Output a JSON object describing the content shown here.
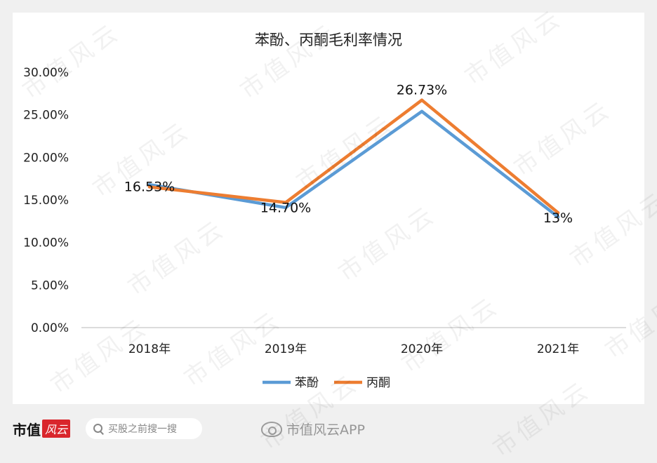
{
  "chart_data": {
    "type": "line",
    "title": "苯酚、丙酮毛利率情况",
    "categories": [
      "2018年",
      "2019年",
      "2020年",
      "2021年"
    ],
    "ylim": [
      0,
      30
    ],
    "y_ticks": [
      "0.00%",
      "5.00%",
      "10.00%",
      "15.00%",
      "20.00%",
      "25.00%",
      "30.00%"
    ],
    "y_tick_values": [
      0,
      5,
      10,
      15,
      20,
      25,
      30
    ],
    "series": [
      {
        "name": "苯酚",
        "values": [
          16.8,
          14.1,
          25.4,
          13.0
        ],
        "color": "#5b9bd5"
      },
      {
        "name": "丙酮",
        "values": [
          16.53,
          14.7,
          26.73,
          13.5
        ],
        "color": "#ed7d31"
      }
    ],
    "data_labels": [
      "16.53%",
      "14.70%",
      "26.73%",
      "13%"
    ],
    "grid": false,
    "legend_position": "bottom"
  },
  "watermark": "市值风云",
  "footer": {
    "brand": "市值",
    "brand_badge": "风云",
    "search_placeholder": "买股之前搜一搜",
    "weibo_text": "市值风云APP"
  }
}
